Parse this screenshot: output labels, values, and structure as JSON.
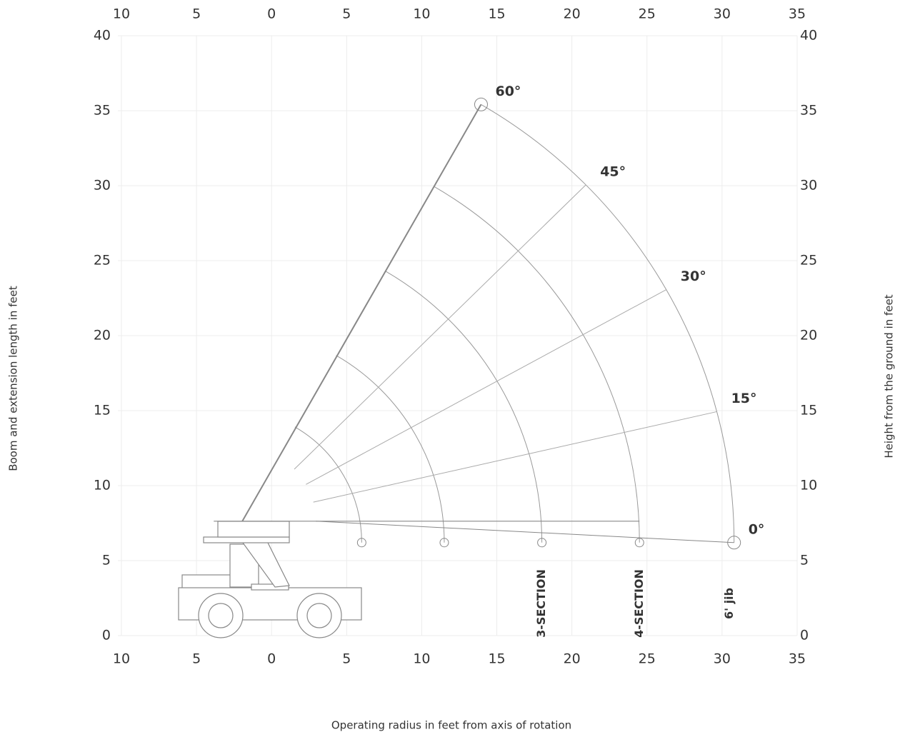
{
  "chart_data": {
    "type": "boom-range",
    "x_label": "Operating radius in feet from axis of rotation",
    "y_label": "Boom and extension length in feet",
    "y2_label": "Height from the ground in feet",
    "xlim": [
      -10,
      35
    ],
    "ylim": [
      0,
      40
    ],
    "xticks": [
      {
        "value": -10,
        "label": "10"
      },
      {
        "value": -5,
        "label": "5"
      },
      0,
      5,
      10,
      15,
      20,
      25,
      30,
      35
    ],
    "yticks": [
      0,
      5,
      10,
      15,
      20,
      25,
      30,
      35,
      40
    ],
    "grid": true,
    "pivot": {
      "x": -2.9,
      "y": 6.2
    },
    "arc_ends_x": [
      6,
      11.5,
      18,
      24.5,
      30.8
    ],
    "angles": [
      {
        "value": 60,
        "label": "60°"
      },
      {
        "value": 45,
        "label": "45°"
      },
      {
        "value": 30,
        "label": "30°"
      },
      {
        "value": 15,
        "label": "15°"
      },
      {
        "value": 0,
        "label": "0°"
      }
    ],
    "sections": [
      {
        "label": "3-SECTION",
        "x": 18
      },
      {
        "label": "4-SECTION",
        "x": 24.5
      },
      {
        "label": "6' jib",
        "x": 30.5
      }
    ]
  }
}
